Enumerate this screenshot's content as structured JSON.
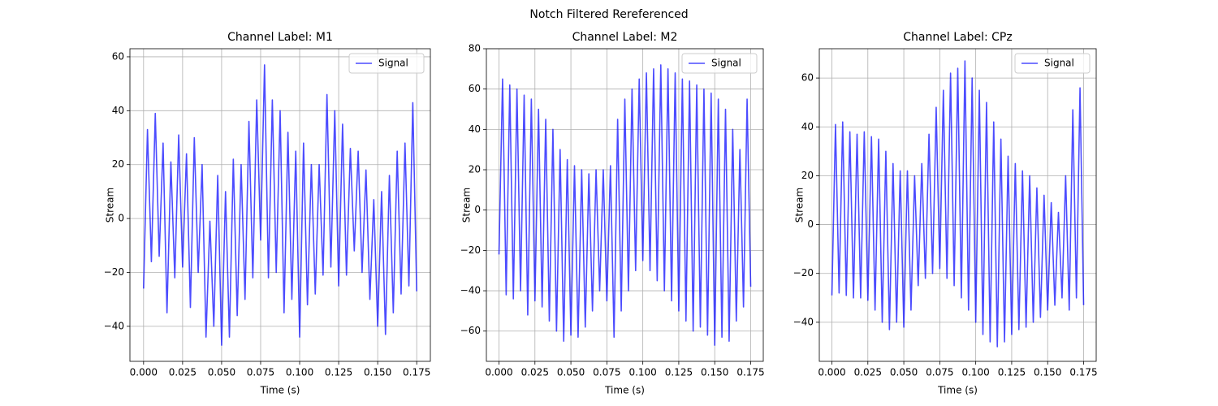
{
  "title": "Notch Filtered Rereferenced",
  "chart_data": [
    {
      "type": "line",
      "title": "Channel Label: M1",
      "x_label": "Time (s)",
      "y_label": "Stream",
      "x": [
        0,
        0.0025,
        0.005,
        0.0075,
        0.01,
        0.0125,
        0.015,
        0.0175,
        0.02,
        0.0225,
        0.025,
        0.0275,
        0.03,
        0.0325,
        0.035,
        0.0375,
        0.04,
        0.0425,
        0.045,
        0.0475,
        0.05,
        0.0525,
        0.055,
        0.0575,
        0.06,
        0.0625,
        0.065,
        0.0675,
        0.07,
        0.0725,
        0.075,
        0.0775,
        0.08,
        0.0825,
        0.085,
        0.0875,
        0.09,
        0.0925,
        0.095,
        0.0975,
        0.1,
        0.1025,
        0.105,
        0.1075,
        0.11,
        0.1125,
        0.115,
        0.1175,
        0.12,
        0.1225,
        0.125,
        0.1275,
        0.13,
        0.1325,
        0.135,
        0.1375,
        0.14,
        0.1425,
        0.145,
        0.1475,
        0.15,
        0.1525,
        0.155,
        0.1575,
        0.16,
        0.1625,
        0.165,
        0.1675,
        0.17,
        0.1725,
        0.175
      ],
      "series": [
        {
          "name": "Signal",
          "color": "#0000ff",
          "values": [
            -26,
            33,
            -16,
            39,
            -14,
            28,
            -35,
            21,
            -22,
            31,
            -18,
            24,
            -33,
            30,
            -20,
            20,
            -44,
            -1,
            -40,
            16,
            -47,
            10,
            -44,
            22,
            -36,
            20,
            -30,
            36,
            -22,
            44,
            -8,
            57,
            -22,
            44,
            -20,
            40,
            -35,
            32,
            -30,
            25,
            -44,
            28,
            -32,
            20,
            -28,
            20,
            -21,
            46,
            -18,
            40,
            -25,
            35,
            -21,
            26,
            -12,
            25,
            -20,
            18,
            -30,
            7,
            -40,
            10,
            -43,
            16,
            -35,
            25,
            -28,
            28,
            -25,
            43,
            -27
          ]
        }
      ],
      "xlim": [
        -0.00875,
        0.18375
      ],
      "ylim": [
        -53,
        63
      ],
      "xticks": [
        {
          "value": 0,
          "label": "0.000"
        },
        {
          "value": 0.025,
          "label": "0.025"
        },
        {
          "value": 0.05,
          "label": "0.050"
        },
        {
          "value": 0.075,
          "label": "0.075"
        },
        {
          "value": 0.1,
          "label": "0.100"
        },
        {
          "value": 0.125,
          "label": "0.125"
        },
        {
          "value": 0.15,
          "label": "0.150"
        },
        {
          "value": 0.175,
          "label": "0.175"
        }
      ],
      "yticks": [
        {
          "value": -40,
          "label": "−40"
        },
        {
          "value": -20,
          "label": "−20"
        },
        0,
        20,
        40,
        60
      ],
      "grid": true,
      "legend": "upper right"
    },
    {
      "type": "line",
      "title": "Channel Label: M2",
      "x_label": "Time (s)",
      "y_label": "Stream",
      "x": [
        0,
        0.0025,
        0.005,
        0.0075,
        0.01,
        0.0125,
        0.015,
        0.0175,
        0.02,
        0.0225,
        0.025,
        0.0275,
        0.03,
        0.0325,
        0.035,
        0.0375,
        0.04,
        0.0425,
        0.045,
        0.0475,
        0.05,
        0.0525,
        0.055,
        0.0575,
        0.06,
        0.0625,
        0.065,
        0.0675,
        0.07,
        0.0725,
        0.075,
        0.0775,
        0.08,
        0.0825,
        0.085,
        0.0875,
        0.09,
        0.0925,
        0.095,
        0.0975,
        0.1,
        0.1025,
        0.105,
        0.1075,
        0.11,
        0.1125,
        0.115,
        0.1175,
        0.12,
        0.1225,
        0.125,
        0.1275,
        0.13,
        0.1325,
        0.135,
        0.1375,
        0.14,
        0.1425,
        0.145,
        0.1475,
        0.15,
        0.1525,
        0.155,
        0.1575,
        0.16,
        0.1625,
        0.165,
        0.1675,
        0.17,
        0.1725,
        0.175
      ],
      "series": [
        {
          "name": "Signal",
          "color": "#0000ff",
          "values": [
            -22,
            65,
            -42,
            62,
            -44,
            60,
            -40,
            57,
            -52,
            55,
            -45,
            50,
            -48,
            45,
            -55,
            40,
            -60,
            30,
            -65,
            25,
            -62,
            22,
            -63,
            20,
            -58,
            18,
            -50,
            20,
            -40,
            20,
            -45,
            22,
            -63,
            45,
            -50,
            55,
            -40,
            60,
            -30,
            65,
            -25,
            68,
            -30,
            70,
            -35,
            72,
            -40,
            70,
            -45,
            68,
            -50,
            65,
            -55,
            64,
            -60,
            62,
            -58,
            60,
            -62,
            58,
            -67,
            55,
            -63,
            50,
            -65,
            40,
            -55,
            30,
            -48,
            55,
            -38
          ]
        }
      ],
      "xlim": [
        -0.00875,
        0.18375
      ],
      "ylim": [
        -75,
        80
      ],
      "xticks": [
        {
          "value": 0,
          "label": "0.000"
        },
        {
          "value": 0.025,
          "label": "0.025"
        },
        {
          "value": 0.05,
          "label": "0.050"
        },
        {
          "value": 0.075,
          "label": "0.075"
        },
        {
          "value": 0.1,
          "label": "0.100"
        },
        {
          "value": 0.125,
          "label": "0.125"
        },
        {
          "value": 0.15,
          "label": "0.150"
        },
        {
          "value": 0.175,
          "label": "0.175"
        }
      ],
      "yticks": [
        {
          "value": -60,
          "label": "−60"
        },
        {
          "value": -40,
          "label": "−40"
        },
        {
          "value": -20,
          "label": "−20"
        },
        0,
        20,
        40,
        60,
        80
      ],
      "grid": true,
      "legend": "upper right"
    },
    {
      "type": "line",
      "title": "Channel Label: CPz",
      "x_label": "Time (s)",
      "y_label": "Stream",
      "x": [
        0,
        0.0025,
        0.005,
        0.0075,
        0.01,
        0.0125,
        0.015,
        0.0175,
        0.02,
        0.0225,
        0.025,
        0.0275,
        0.03,
        0.0325,
        0.035,
        0.0375,
        0.04,
        0.0425,
        0.045,
        0.0475,
        0.05,
        0.0525,
        0.055,
        0.0575,
        0.06,
        0.0625,
        0.065,
        0.0675,
        0.07,
        0.0725,
        0.075,
        0.0775,
        0.08,
        0.0825,
        0.085,
        0.0875,
        0.09,
        0.0925,
        0.095,
        0.0975,
        0.1,
        0.1025,
        0.105,
        0.1075,
        0.11,
        0.1125,
        0.115,
        0.1175,
        0.12,
        0.1225,
        0.125,
        0.1275,
        0.13,
        0.1325,
        0.135,
        0.1375,
        0.14,
        0.1425,
        0.145,
        0.1475,
        0.15,
        0.1525,
        0.155,
        0.1575,
        0.16,
        0.1625,
        0.165,
        0.1675,
        0.17,
        0.1725,
        0.175
      ],
      "series": [
        {
          "name": "Signal",
          "color": "#0000ff",
          "values": [
            -29,
            41,
            -28,
            42,
            -29,
            38,
            -30,
            37,
            -30,
            38,
            -31,
            36,
            -35,
            35,
            -40,
            30,
            -43,
            25,
            -40,
            22,
            -42,
            22,
            -35,
            20,
            -25,
            25,
            -22,
            37,
            -20,
            48,
            -18,
            55,
            -22,
            62,
            -25,
            64,
            -30,
            67,
            -35,
            60,
            -40,
            55,
            -45,
            50,
            -48,
            42,
            -50,
            35,
            -48,
            28,
            -45,
            25,
            -43,
            22,
            -42,
            20,
            -40,
            15,
            -38,
            12,
            -35,
            9,
            -33,
            5,
            -30,
            20,
            -35,
            47,
            -30,
            56,
            -33
          ]
        }
      ],
      "xlim": [
        -0.00875,
        0.18375
      ],
      "ylim": [
        -56,
        72
      ],
      "xticks": [
        {
          "value": 0,
          "label": "0.000"
        },
        {
          "value": 0.025,
          "label": "0.025"
        },
        {
          "value": 0.05,
          "label": "0.050"
        },
        {
          "value": 0.075,
          "label": "0.075"
        },
        {
          "value": 0.1,
          "label": "0.100"
        },
        {
          "value": 0.125,
          "label": "0.125"
        },
        {
          "value": 0.15,
          "label": "0.150"
        },
        {
          "value": 0.175,
          "label": "0.175"
        }
      ],
      "yticks": [
        {
          "value": -40,
          "label": "−40"
        },
        {
          "value": -20,
          "label": "−20"
        },
        0,
        20,
        40,
        60
      ],
      "grid": true,
      "legend": "upper right"
    }
  ]
}
